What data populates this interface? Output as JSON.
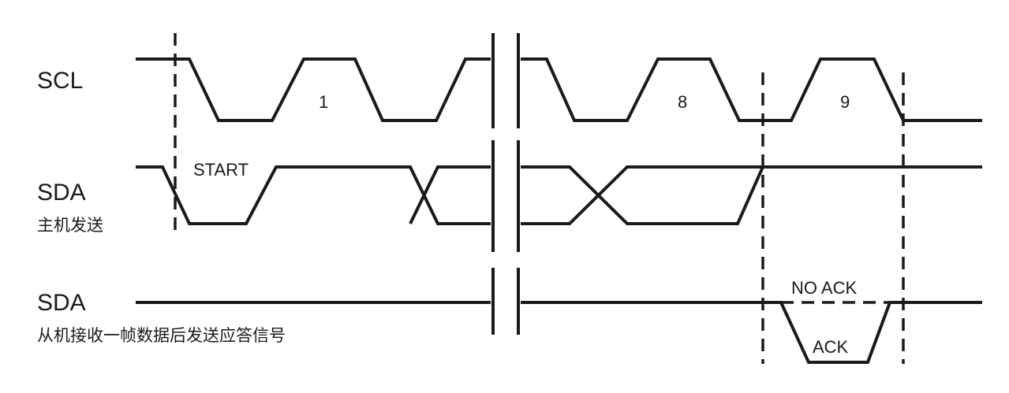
{
  "signals": {
    "scl": {
      "name": "SCL"
    },
    "sda_master": {
      "name": "SDA",
      "sublabel": "主机发送"
    },
    "sda_slave": {
      "name": "SDA",
      "sublabel": "从机接收一帧数据后发送应答信号"
    }
  },
  "annotations": {
    "start": "START",
    "clock_1": "1",
    "clock_8": "8",
    "clock_9": "9",
    "no_ack": "NO ACK",
    "ack": "ACK"
  }
}
